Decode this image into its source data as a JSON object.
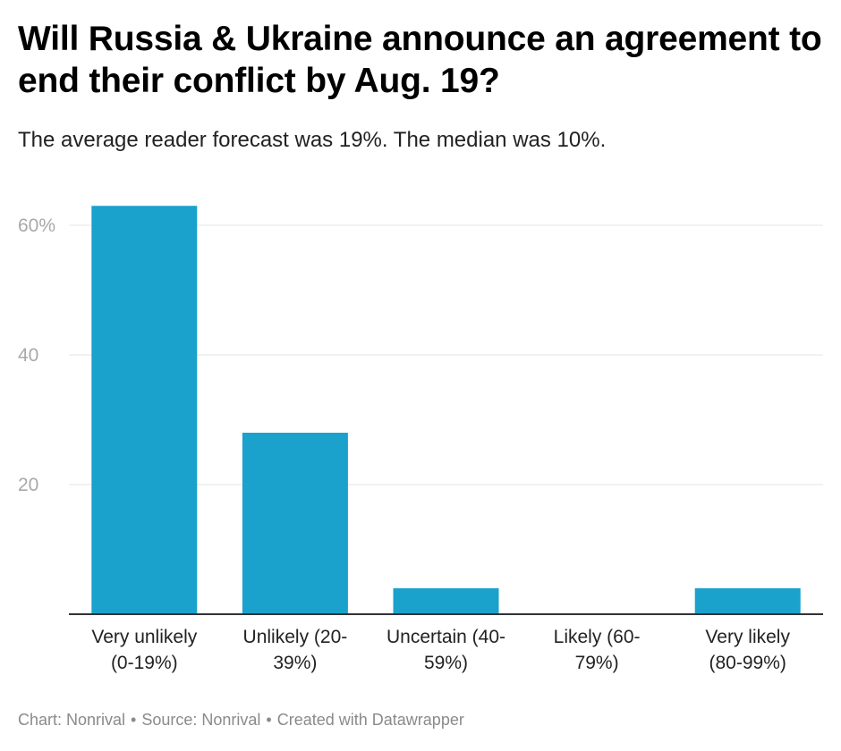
{
  "title": "Will Russia & Ukraine announce an agreement to end their conflict by Aug. 19?",
  "subtitle": "The average reader forecast was 19%. The median was 10%.",
  "footer": {
    "chart": "Chart: Nonrival",
    "source": "Source: Nonrival",
    "created": "Created with Datawrapper",
    "separator": "•"
  },
  "colors": {
    "bar": "#1aa1cc",
    "grid": "#e6e6e6",
    "axis": "#333333"
  },
  "chart_data": {
    "type": "bar",
    "categories": [
      "Very unlikely (0-19%)",
      "Unlikely (20-39%)",
      "Uncertain (40-59%)",
      "Likely (60-79%)",
      "Very likely (80-99%)"
    ],
    "category_label_lines": [
      [
        "Very unlikely",
        "(0-19%)"
      ],
      [
        "Unlikely (20-",
        "39%)"
      ],
      [
        "Uncertain (40-",
        "59%)"
      ],
      [
        "Likely (60-",
        "79%)"
      ],
      [
        "Very likely",
        "(80-99%)"
      ]
    ],
    "values": [
      63,
      28,
      4,
      0,
      4
    ],
    "yticks": [
      20,
      40,
      60
    ],
    "ytick_labels": [
      "20",
      "40",
      "60%"
    ],
    "ylim": [
      0,
      66
    ],
    "grid": true,
    "legend": "none",
    "xlabel": "",
    "ylabel": ""
  }
}
